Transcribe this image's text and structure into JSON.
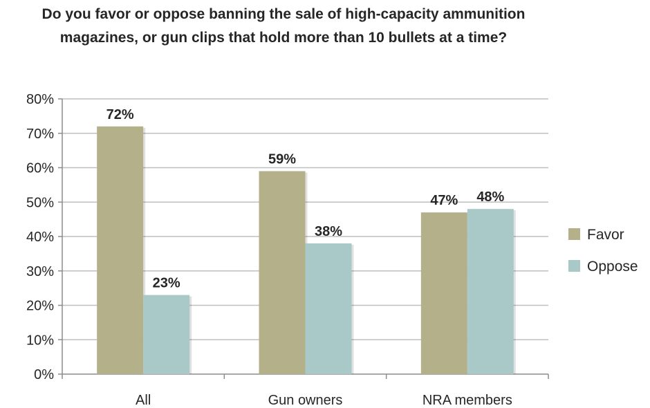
{
  "chart_data": {
    "type": "bar",
    "title": "Do you favor or oppose banning the sale of high-capacity ammunition magazines, or gun clips that hold more than 10 bullets at a time?",
    "categories": [
      "All",
      "Gun owners",
      "NRA members"
    ],
    "series": [
      {
        "name": "Favor",
        "values": [
          72,
          59,
          47
        ],
        "labels": [
          "72%",
          "59%",
          "47%"
        ],
        "color": "#b3b08a"
      },
      {
        "name": "Oppose",
        "values": [
          23,
          38,
          48
        ],
        "labels": [
          "23%",
          "38%",
          "48%"
        ],
        "color": "#a9c9c8"
      }
    ],
    "ylim": [
      0,
      80
    ],
    "yticks": [
      0,
      10,
      20,
      30,
      40,
      50,
      60,
      70,
      80
    ],
    "ytick_labels": [
      "0%",
      "10%",
      "20%",
      "30%",
      "40%",
      "50%",
      "60%",
      "70%",
      "80%"
    ],
    "xlabel": "",
    "ylabel": "",
    "grid": true,
    "legend_position": "right",
    "gridline_color": "#bfbfbf"
  }
}
